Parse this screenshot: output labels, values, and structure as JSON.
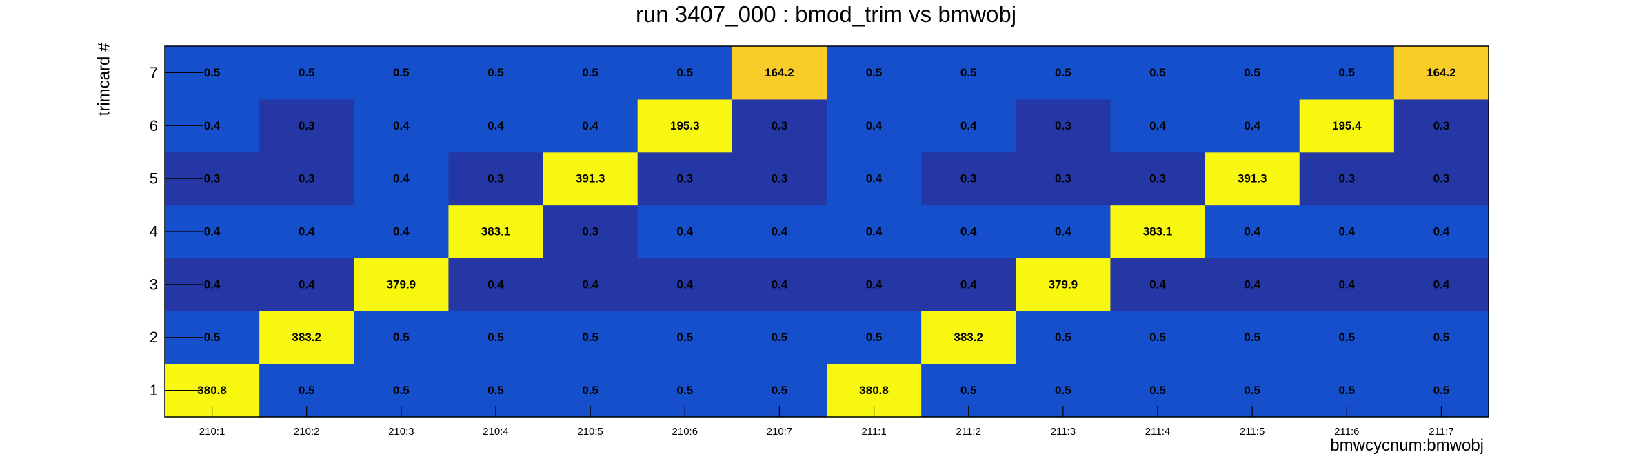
{
  "chart_data": {
    "type": "heatmap",
    "title": "run 3407_000 : bmod_trim vs bmwobj",
    "xlabel": "bmwcycnum:bmwobj",
    "ylabel": "trimcard #",
    "x_categories": [
      "210:1",
      "210:2",
      "210:3",
      "210:4",
      "210:5",
      "210:6",
      "210:7",
      "211:1",
      "211:2",
      "211:3",
      "211:4",
      "211:5",
      "211:6",
      "211:7"
    ],
    "y_categories": [
      "1",
      "2",
      "3",
      "4",
      "5",
      "6",
      "7"
    ],
    "values": [
      [
        "380.8",
        "0.5",
        "0.5",
        "0.5",
        "0.5",
        "0.5",
        "0.5",
        "380.8",
        "0.5",
        "0.5",
        "0.5",
        "0.5",
        "0.5",
        "0.5"
      ],
      [
        "0.5",
        "383.2",
        "0.5",
        "0.5",
        "0.5",
        "0.5",
        "0.5",
        "0.5",
        "383.2",
        "0.5",
        "0.5",
        "0.5",
        "0.5",
        "0.5"
      ],
      [
        "0.4",
        "0.4",
        "379.9",
        "0.4",
        "0.4",
        "0.4",
        "0.4",
        "0.4",
        "0.4",
        "379.9",
        "0.4",
        "0.4",
        "0.4",
        "0.4"
      ],
      [
        "0.4",
        "0.4",
        "0.4",
        "383.1",
        "0.3",
        "0.4",
        "0.4",
        "0.4",
        "0.4",
        "0.4",
        "383.1",
        "0.4",
        "0.4",
        "0.4"
      ],
      [
        "0.3",
        "0.3",
        "0.4",
        "0.3",
        "391.3",
        "0.3",
        "0.3",
        "0.4",
        "0.3",
        "0.3",
        "0.3",
        "391.3",
        "0.3",
        "0.3"
      ],
      [
        "0.4",
        "0.3",
        "0.4",
        "0.4",
        "0.4",
        "195.3",
        "0.3",
        "0.4",
        "0.4",
        "0.3",
        "0.4",
        "0.4",
        "195.4",
        "0.3"
      ],
      [
        "0.5",
        "0.5",
        "0.5",
        "0.5",
        "0.5",
        "0.5",
        "164.2",
        "0.5",
        "0.5",
        "0.5",
        "0.5",
        "0.5",
        "0.5",
        "164.2"
      ]
    ],
    "grid": false,
    "legend": "none",
    "colors": {
      "high": "#f7f70f",
      "mid_high": "#f8cd2a",
      "mid": "#154fcb",
      "low": "#2437a4"
    }
  }
}
